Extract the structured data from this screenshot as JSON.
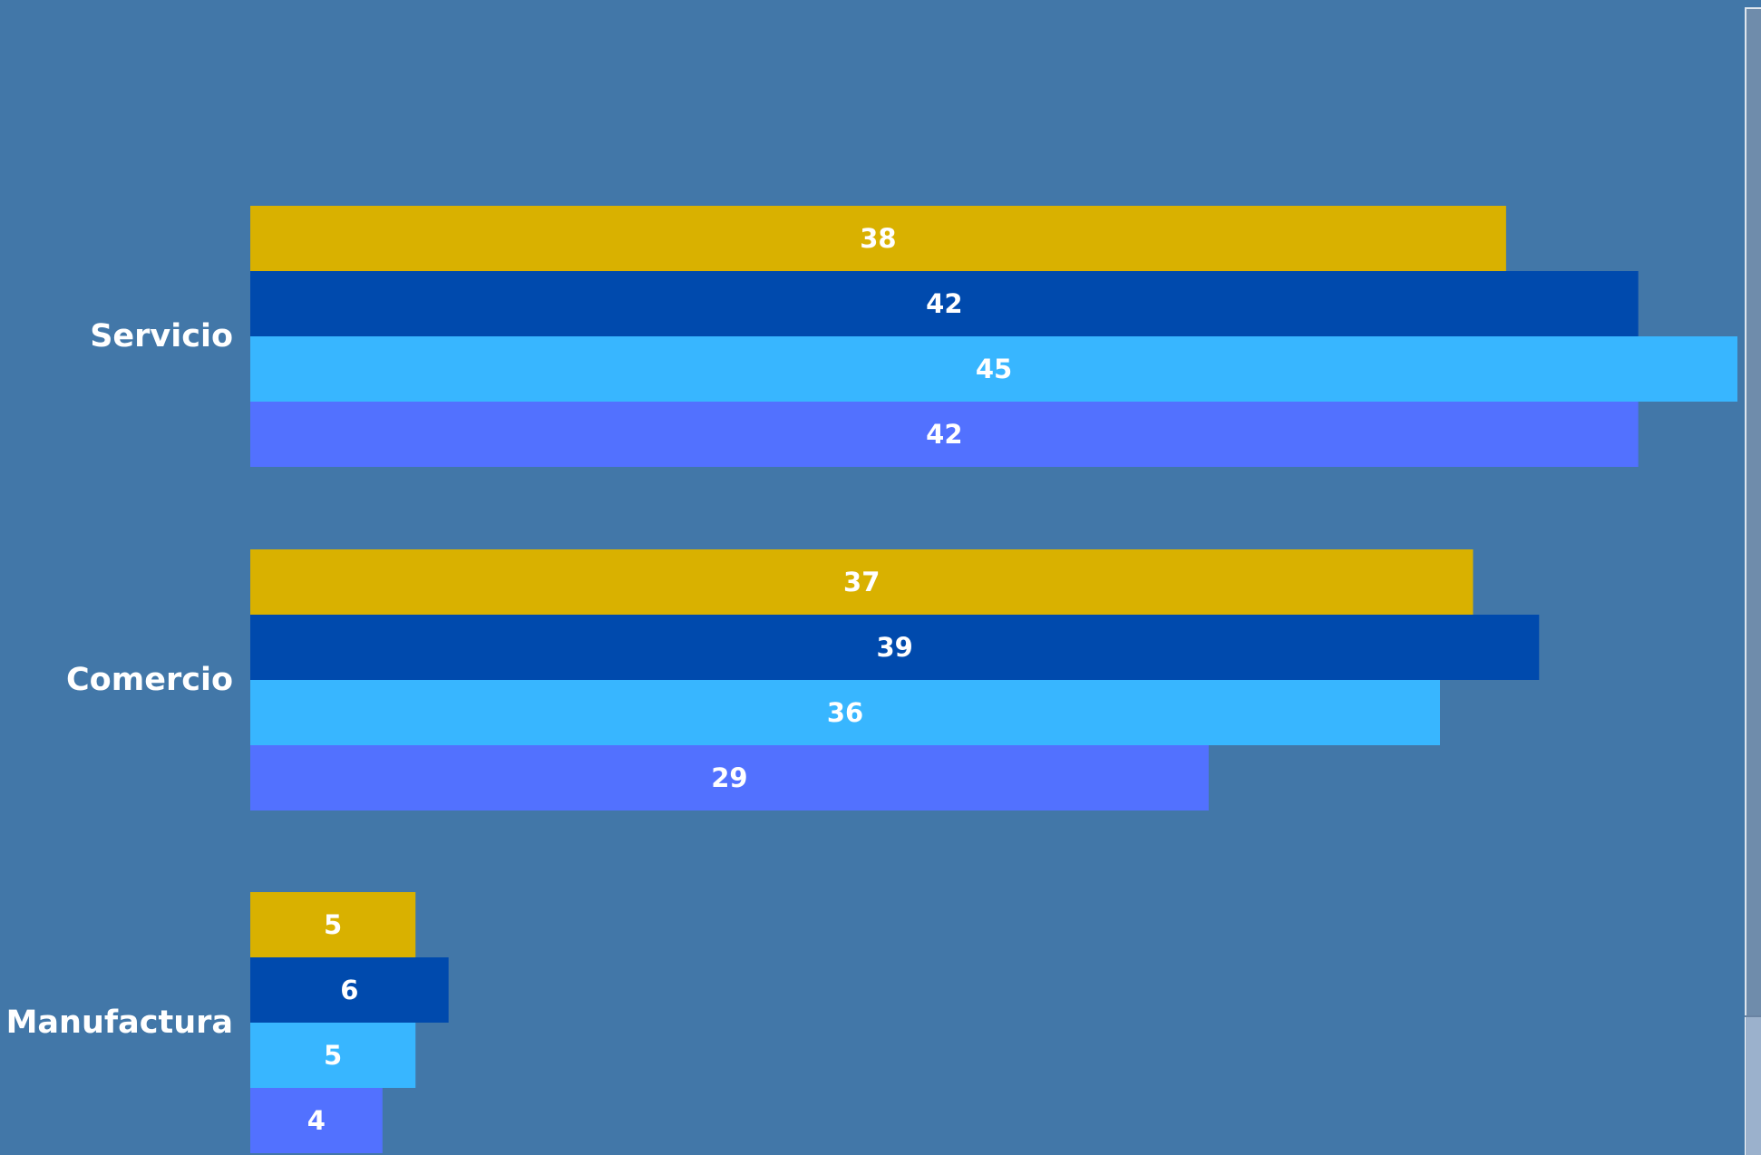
{
  "chart_data": {
    "type": "bar",
    "orientation": "horizontal",
    "categories": [
      "Servicio",
      "Comercio",
      "Manufactura"
    ],
    "series": [
      {
        "values": [
          38,
          37,
          5
        ],
        "color": "#d9b100"
      },
      {
        "values": [
          42,
          39,
          6
        ],
        "color": "#004aad"
      },
      {
        "values": [
          45,
          36,
          5
        ],
        "color": "#38b6ff"
      },
      {
        "values": [
          42,
          29,
          4
        ],
        "color": "#5271ff"
      }
    ],
    "xlim": [
      0,
      45
    ],
    "grid": false,
    "data_labels": true
  },
  "colors": {
    "background": "#4277a8",
    "label_text": "#ffffff"
  },
  "scrollbar": {
    "thumb_position_fraction": 0.88
  }
}
